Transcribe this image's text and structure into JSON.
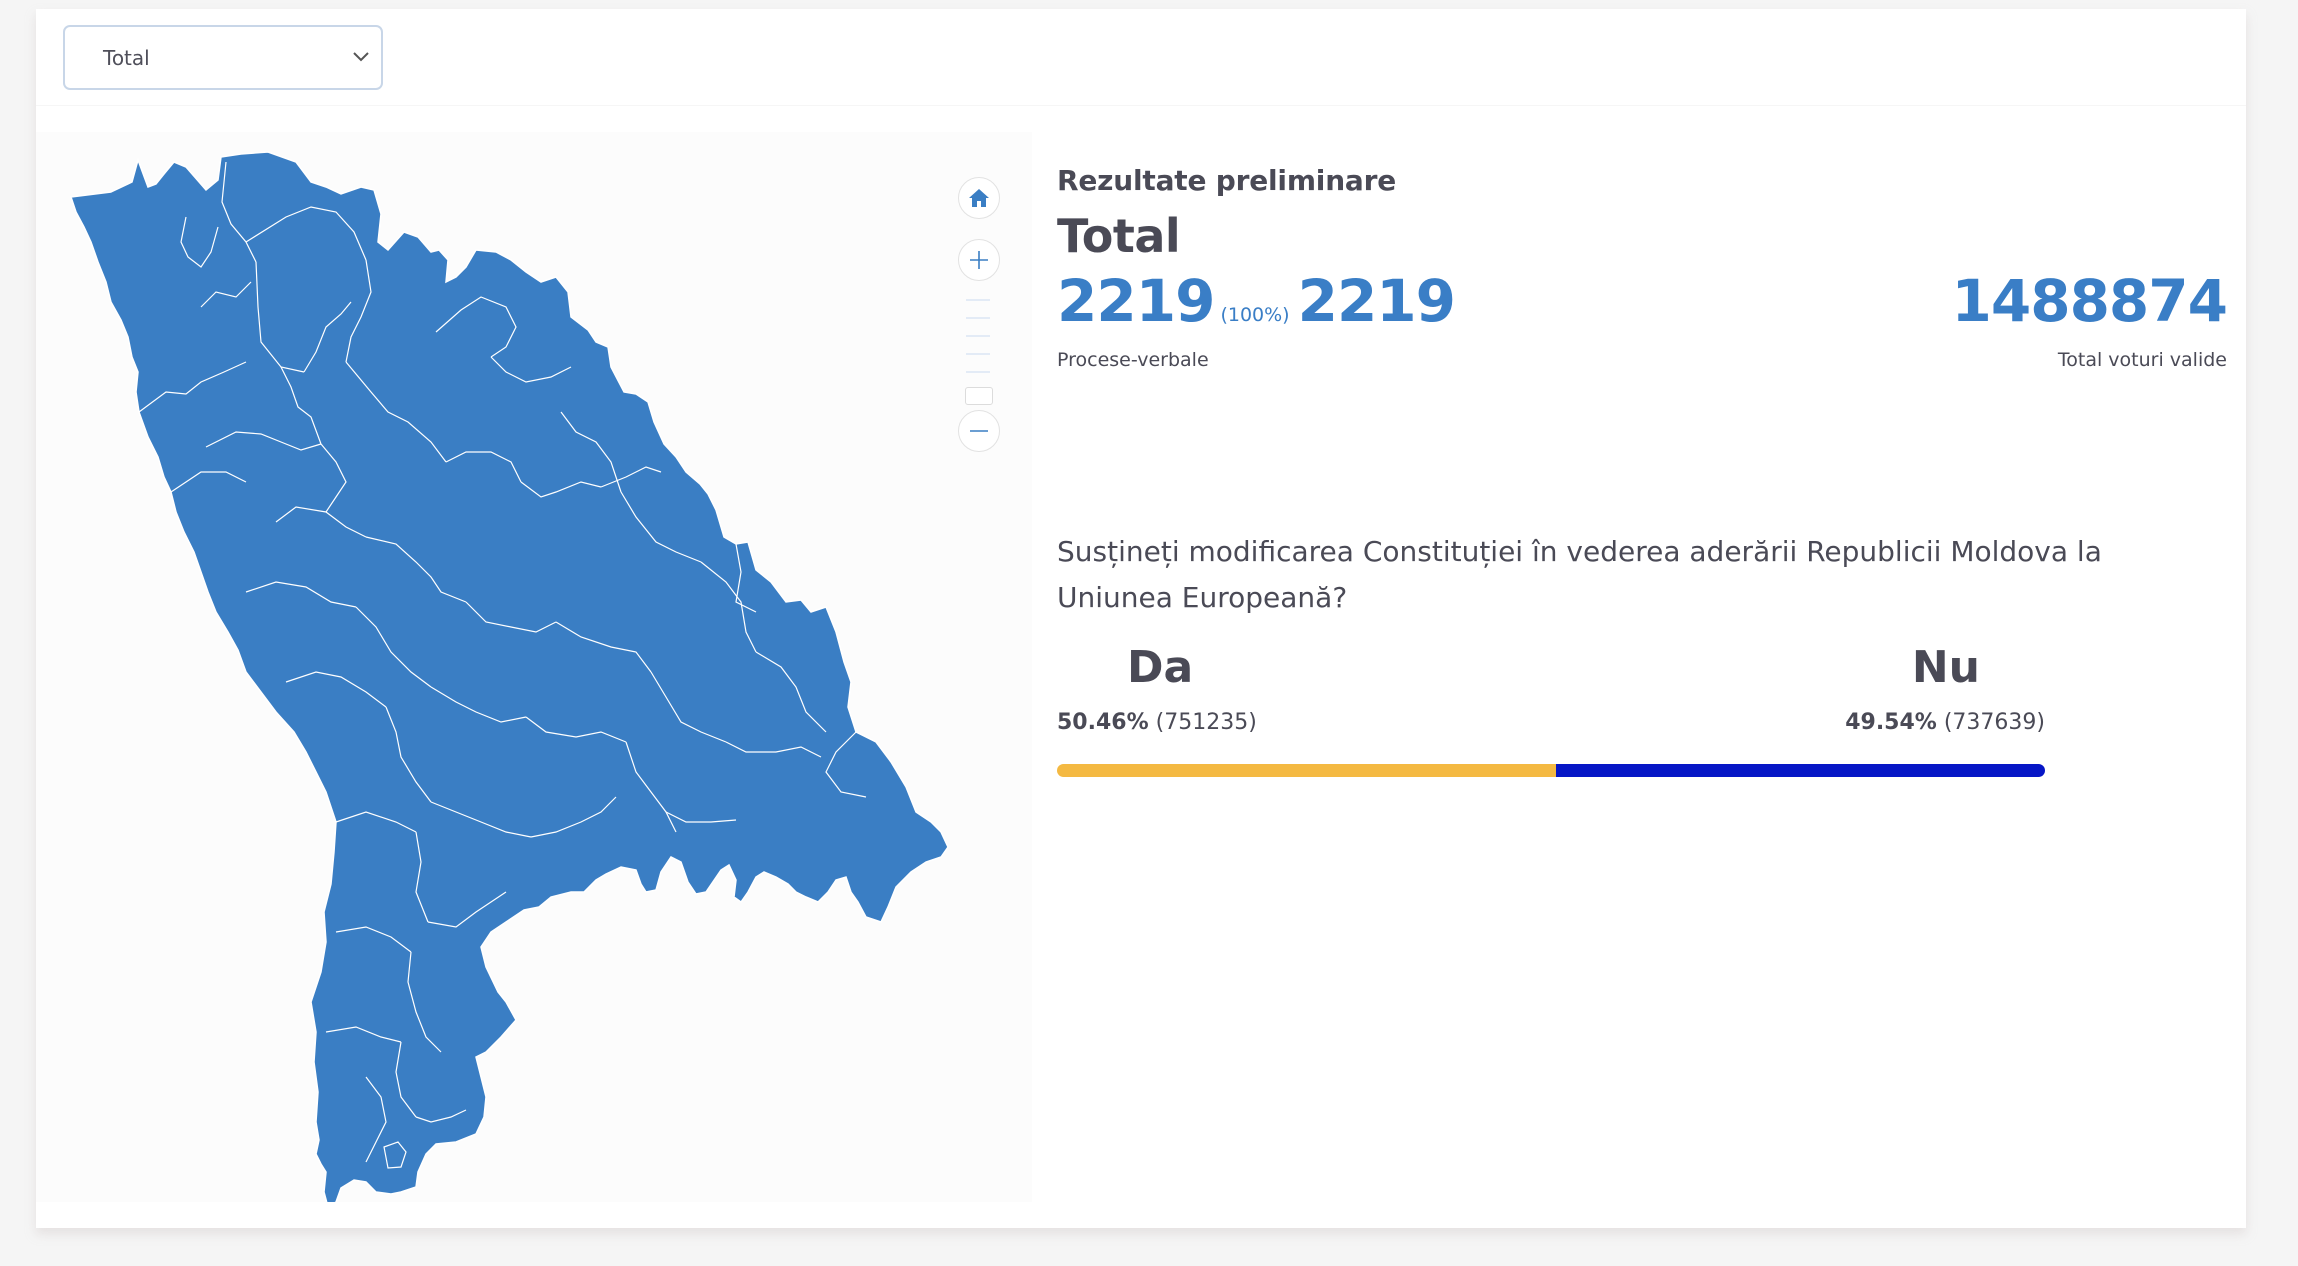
{
  "filter": {
    "selected": "Total",
    "icon": "chevron-down-icon"
  },
  "map": {
    "fill_color": "#3a7ec4",
    "border_color": "#ffffff",
    "controls": {
      "home_icon": "home-icon",
      "zoom_in_icon": "plus-icon",
      "zoom_out_icon": "minus-icon"
    }
  },
  "results": {
    "heading": "Rezultate preliminare",
    "region": "Total",
    "protocols_processed": "2219",
    "protocols_percent": "(100%)",
    "protocols_total": "2219",
    "protocols_label": "Procese-verbale",
    "valid_votes": "1488874",
    "valid_votes_label": "Total voturi valide",
    "question": "Susțineți modificarea Constituției în vederea aderării Republicii Moldova la Uniunea Europeană?",
    "options": [
      {
        "name": "Da",
        "percent": "50.46%",
        "votes": "(751235)",
        "share": 50.46,
        "color": "#f4b942"
      },
      {
        "name": "Nu",
        "percent": "49.54%",
        "votes": "(737639)",
        "share": 49.54,
        "color": "#0616c6"
      }
    ]
  }
}
